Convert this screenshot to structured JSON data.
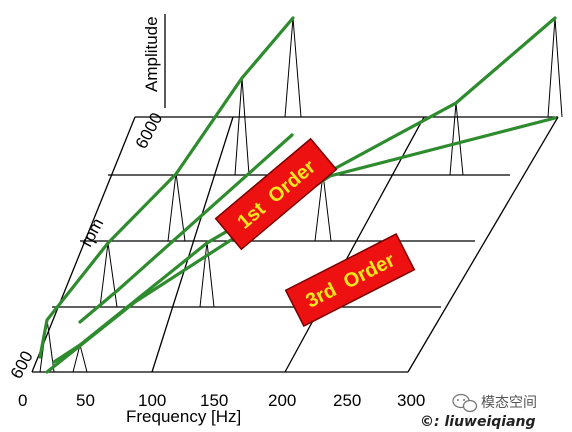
{
  "axes": {
    "x_title": "Frequency [Hz]",
    "y_title": "rpm",
    "z_title": "Amplitude",
    "x_ticks": [
      "0",
      "50",
      "100",
      "150",
      "200",
      "250",
      "300"
    ],
    "y_ticks": [
      "600",
      "6000"
    ]
  },
  "orders": [
    {
      "label": "1st  Order"
    },
    {
      "label": "3rd  Order"
    }
  ],
  "colors": {
    "order_line": "#2e8b2e",
    "label_fill": "#ee1111",
    "label_text": "#f6e71a",
    "grid": "#000000"
  },
  "watermark": {
    "name": "模态空间",
    "url": "©: liuweiqiang",
    "icon": "wechat-icon"
  }
}
